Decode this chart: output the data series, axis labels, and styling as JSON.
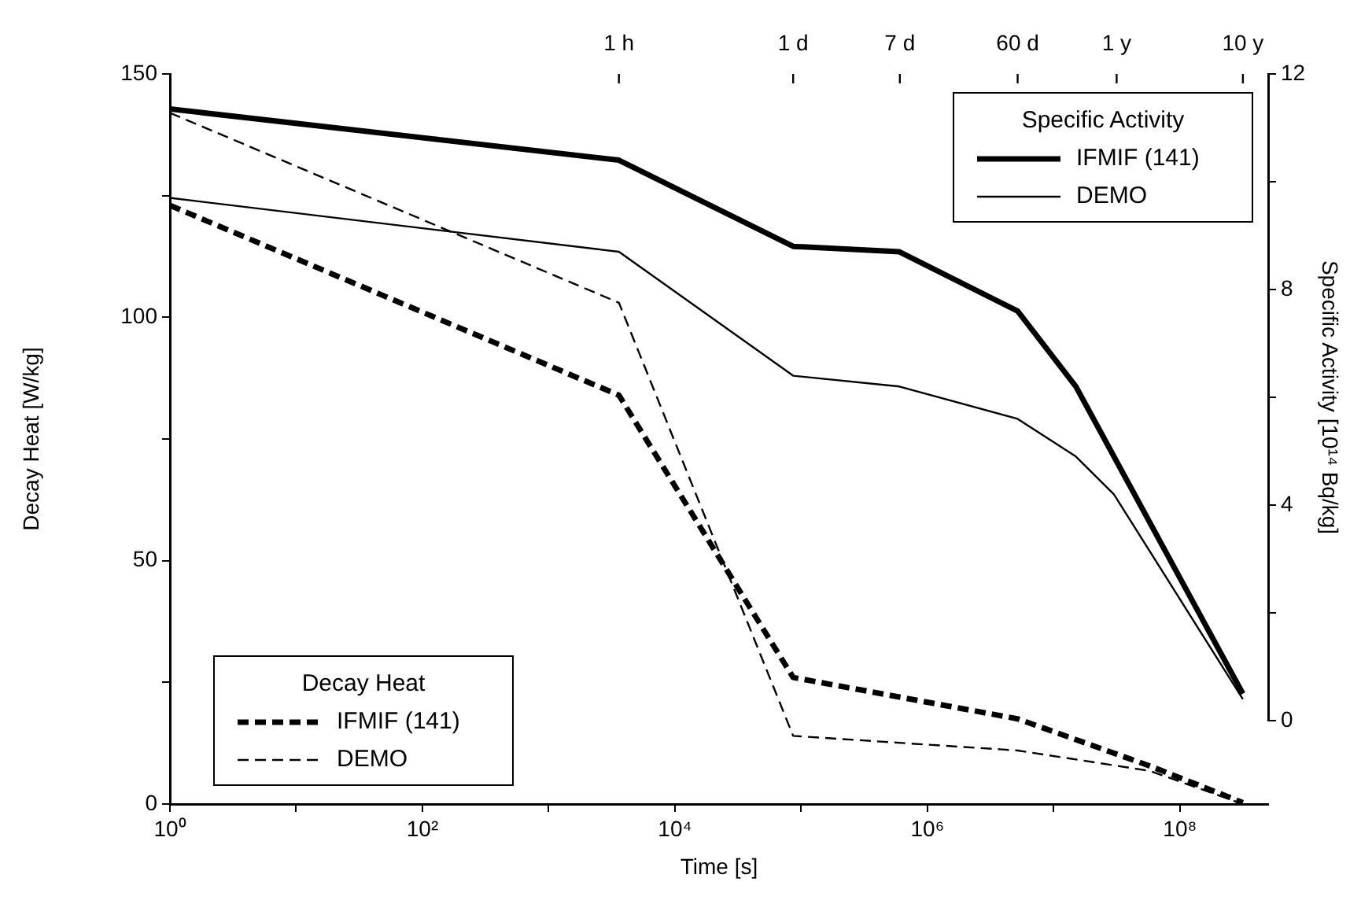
{
  "chart_data": [
    {
      "type": "line",
      "xlabel": "Time [s]",
      "ylabel": "Decay Heat [W/kg]",
      "legend_title": "Decay Heat",
      "legend": "bottom left",
      "log": "x",
      "xlim": [
        1,
        500000000
      ],
      "xticks": [
        {
          "value": 1,
          "label": "10⁰"
        },
        {
          "value": 10,
          "label": null
        },
        {
          "value": 100,
          "label": "10²"
        },
        {
          "value": 1000,
          "label": null
        },
        {
          "value": 10000,
          "label": "10⁴"
        },
        {
          "value": 100000,
          "label": null
        },
        {
          "value": 1000000,
          "label": "10⁶"
        },
        {
          "value": 10000000,
          "label": null
        },
        {
          "value": 100000000,
          "label": "10⁸"
        }
      ],
      "ylim": [
        0,
        150
      ],
      "yticks": [
        0,
        {
          "value": 25,
          "label": null
        },
        50,
        {
          "value": 75,
          "label": null
        },
        100,
        {
          "value": 125,
          "label": null
        },
        150
      ],
      "marker": "none",
      "series": [
        {
          "name": "IFMIF (141)",
          "color": "#000000",
          "line_style": "dashed",
          "x": [
            1,
            3600,
            34000,
            86400,
            5184000,
            58000000,
            315000000
          ],
          "values": [
            123,
            84,
            43,
            26,
            17.5,
            7.8,
            0.3
          ]
        },
        {
          "name": "DEMO",
          "color": "#000000",
          "line_style": "dashed",
          "x": [
            1,
            3600,
            86400,
            5184000,
            58000000,
            315000000
          ],
          "values": [
            142,
            103,
            14,
            11,
            6.8,
            0
          ]
        }
      ]
    },
    {
      "type": "line",
      "y2label": "Specific Activity [10¹⁴ Bq/kg]",
      "legend_title": "Specific Activity",
      "legend": "top right",
      "log": "x",
      "xlim": [
        1,
        500000000
      ],
      "annotations": [
        {
          "text": "1 h",
          "x": 3600
        },
        {
          "text": "1 d",
          "x": 86400
        },
        {
          "text": "7 d",
          "x": 604800
        },
        {
          "text": "60 d",
          "x": 5184000
        },
        {
          "text": "1 y",
          "x": 31536000
        },
        {
          "text": "10 y",
          "x": 315360000
        }
      ],
      "y2lim": [
        0,
        12
      ],
      "y2ticks": [
        0,
        {
          "value": 2,
          "label": null
        },
        4,
        {
          "value": 6,
          "label": null
        },
        8,
        {
          "value": 10,
          "label": null
        },
        12
      ],
      "marker": "none",
      "series": [
        {
          "name": "IFMIF (141)",
          "color": "#000000",
          "line_style": "solid",
          "axis": "y2",
          "x": [
            1,
            3600,
            86400,
            600000,
            5184000,
            15000000,
            315000000
          ],
          "values": [
            11.35,
            10.4,
            8.8,
            8.7,
            7.6,
            6.2,
            0.5
          ]
        },
        {
          "name": "DEMO",
          "color": "#000000",
          "line_style": "solid",
          "axis": "y2",
          "x": [
            1,
            3600,
            86400,
            600000,
            5184000,
            15000000,
            30000000,
            315000000
          ],
          "values": [
            9.7,
            8.7,
            6.4,
            6.2,
            5.6,
            4.9,
            4.2,
            0.4
          ]
        }
      ]
    }
  ]
}
